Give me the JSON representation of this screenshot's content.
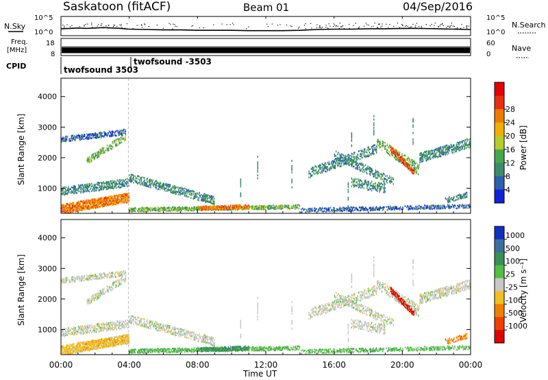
{
  "header": {
    "station": "Saskatoon (fitACF)",
    "beam": "Beam 01",
    "date": "04/Sep/2016"
  },
  "side_labels": {
    "nsky": "N.Sky",
    "freq_line1": "Freq.",
    "freq_line2": "[MHz]",
    "cpid": "CPID",
    "nsearch": "N.Search",
    "nave": "Nave"
  },
  "chart_data": [
    {
      "type": "line",
      "title": "",
      "ylabel": "N.Sky",
      "y2label": "N.Search",
      "yscale": "log",
      "ylim": [
        1,
        100000
      ],
      "ytick_labels": [
        "10^5",
        "10^0"
      ],
      "y2tick_labels": [
        "10^5",
        "10^0"
      ],
      "x_hours": [
        0,
        0.5,
        1,
        1.5,
        2,
        2.5,
        3,
        3.5,
        4,
        5,
        6,
        7,
        8,
        9,
        10,
        11,
        12,
        13,
        14,
        15,
        16,
        17,
        18,
        19,
        20,
        21,
        22,
        23,
        24
      ],
      "noise_log10": [
        1.8,
        1.9,
        2.0,
        1.9,
        2.0,
        2.1,
        2.0,
        1.9,
        1.7,
        1.6,
        1.5,
        1.5,
        1.4,
        1.4,
        1.4,
        1.3,
        1.3,
        1.3,
        1.4,
        1.6,
        1.7,
        1.7,
        1.8,
        1.8,
        1.9,
        1.9,
        1.8,
        1.7,
        1.6
      ]
    },
    {
      "type": "bar",
      "ylabel": "Freq. [MHz]",
      "ylim": [
        8,
        18
      ],
      "ytick_labels": [
        "18",
        "8"
      ],
      "y2label": "Nave",
      "y2lim": [
        0,
        60
      ],
      "y2tick_labels": [
        "60",
        "0"
      ],
      "freq_mhz": 11,
      "cpid_segments": [
        {
          "label": "twofsound 3503",
          "start_hour": 0
        },
        {
          "label": "twofsound -3503",
          "start_hour": 3.95
        }
      ]
    },
    {
      "type": "heatmap",
      "ylabel": "Slant Range [km]",
      "ylim": [
        180,
        4600
      ],
      "yticks": [
        1000,
        2000,
        3000,
        4000
      ],
      "colorbar_label": "Power [dB]",
      "colorbar_ticks": [
        "4",
        "8",
        "12",
        "16",
        "20",
        "24",
        "28"
      ],
      "colorbar_colors": [
        "#1020e0",
        "#2c60b0",
        "#3f8a6a",
        "#48a848",
        "#b8cc2a",
        "#f0b000",
        "#f07a00",
        "#e83010",
        "#e60000"
      ]
    },
    {
      "type": "heatmap",
      "ylabel": "Slant Range [km]",
      "ylim": [
        180,
        4600
      ],
      "yticks": [
        1000,
        2000,
        3000,
        4000
      ],
      "xlabel": "Time UT",
      "xtick_labels": [
        "00:00",
        "04:00",
        "08:00",
        "12:00",
        "16:00",
        "20:00",
        "00:00"
      ],
      "colorbar_label": "Velocity [m s⁻¹]",
      "colorbar_ticks": [
        "1000",
        "500",
        "100",
        "25",
        "-25",
        "-100",
        "-500",
        "-1000"
      ],
      "colorbar_colors": [
        "#1030c0",
        "#3a70a0",
        "#38905a",
        "#50c040",
        "#c8c8c8",
        "#f0c020",
        "#f08000",
        "#f04000",
        "#e00000"
      ]
    }
  ]
}
